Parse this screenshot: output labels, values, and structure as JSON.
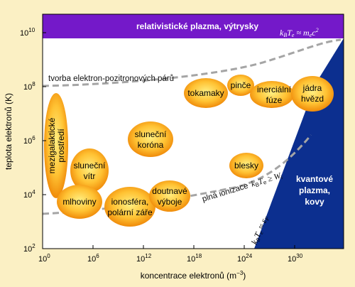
{
  "axes": {
    "x_title": "koncentrace elektronů (m",
    "x_title_sup": "−3",
    "x_title_end": ")",
    "y_title": "teplota elektronů (K)",
    "x_ticks": [
      {
        "base": "10",
        "exp": "0"
      },
      {
        "base": "10",
        "exp": "6"
      },
      {
        "base": "10",
        "exp": "12"
      },
      {
        "base": "10",
        "exp": "18"
      },
      {
        "base": "10",
        "exp": "24"
      },
      {
        "base": "10",
        "exp": "30"
      }
    ],
    "y_ticks": [
      {
        "base": "10",
        "exp": "10"
      },
      {
        "base": "10",
        "exp": "8"
      },
      {
        "base": "10",
        "exp": "6"
      },
      {
        "base": "10",
        "exp": "4"
      },
      {
        "base": "10",
        "exp": "2"
      }
    ]
  },
  "regions": {
    "relativistic": "relativistické plazma, výtrysky",
    "relativistic_formula_left": "k",
    "relativistic_formula_sub": "B",
    "relativistic_formula_mid": "T",
    "relativistic_formula_sub2": "e",
    "relativistic_formula_right": "≈ m",
    "relativistic_formula_sub3": "e",
    "relativistic_formula_end": "c",
    "relativistic_formula_sup": "2",
    "quantum_line1": "kvantové",
    "quantum_line2": "plazma,",
    "quantum_line3": "kovy",
    "fermi_formula_left": "k",
    "fermi_formula_sub": "B",
    "fermi_formula_mid": "T",
    "fermi_formula_sub2": "e",
    "fermi_formula_right": "≈ ε",
    "fermi_formula_sub3": "F"
  },
  "boundaries": {
    "pair_production": "tvorba elektron-pozitronových párů",
    "full_ionization": "plná ionizace",
    "ionization_formula_left": "k",
    "ionization_formula_sub": "B",
    "ionization_formula_mid": "T",
    "ionization_formula_sub2": "e",
    "ionization_formula_right": "≥ W",
    "ionization_formula_sub3": "i"
  },
  "plasmas": {
    "intergalactic_line1": "mezigalaktické",
    "intergalactic_line2": "prostředí",
    "solar_wind_line1": "sluneční",
    "solar_wind_line2": "vítr",
    "nebulae": "mlhoviny",
    "ionosphere_line1": "ionosféra,",
    "ionosphere_line2": "polární záře",
    "discharges_line1": "doutnavé",
    "discharges_line2": "výboje",
    "corona_line1": "sluneční",
    "corona_line2": "koróna",
    "tokamaks": "tokamaky",
    "pinches": "pinče",
    "inertial_line1": "inerciální",
    "inertial_line2": "fúze",
    "stellar_line1": "jádra",
    "stellar_line2": "hvězd",
    "lightning": "blesky"
  },
  "colors": {
    "background": "#fbf0c4",
    "relativistic_band": "#7419c9",
    "quantum_region": "#0c2f8f",
    "boundary_line": "#a5a5a5",
    "blob_center": "#ffe870",
    "blob_edge": "#ec7e00"
  }
}
